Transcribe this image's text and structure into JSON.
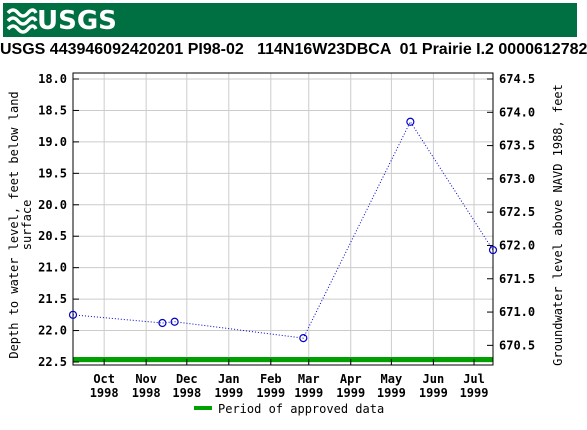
{
  "header": {
    "logo_text": "USGS",
    "logo_icon": "usgs-wave-icon",
    "brand_color": "#006f41"
  },
  "chart_data": {
    "type": "line",
    "title": "USGS 443946092420201 PI98-02   114N16W23DBCA  01 Prairie I.2 0000612782",
    "ylabel_left_line1": "Depth to water level, feet below land",
    "ylabel_left_line2": "surface",
    "ylabel_right": "Groundwater level above NAVD 1988, feet",
    "x_ticks": [
      {
        "month": "Oct",
        "year": "1998",
        "date": "1998-10-01"
      },
      {
        "month": "Nov",
        "year": "1998",
        "date": "1998-11-01"
      },
      {
        "month": "Dec",
        "year": "1998",
        "date": "1998-12-01"
      },
      {
        "month": "Jan",
        "year": "1999",
        "date": "1999-01-01"
      },
      {
        "month": "Feb",
        "year": "1999",
        "date": "1999-02-01"
      },
      {
        "month": "Mar",
        "year": "1999",
        "date": "1999-03-01"
      },
      {
        "month": "Apr",
        "year": "1999",
        "date": "1999-04-01"
      },
      {
        "month": "May",
        "year": "1999",
        "date": "1999-05-01"
      },
      {
        "month": "Jun",
        "year": "1999",
        "date": "1999-06-01"
      },
      {
        "month": "Jul",
        "year": "1999",
        "date": "1999-07-01"
      }
    ],
    "x_range": [
      "1998-09-08",
      "1999-07-15"
    ],
    "y_left_range": [
      18.0,
      22.5
    ],
    "y_left_inverted": true,
    "y_left_ticks": [
      "18.0",
      "18.5",
      "19.0",
      "19.5",
      "20.0",
      "20.5",
      "21.0",
      "21.5",
      "22.0",
      "22.5"
    ],
    "y_right_ticks": [
      "674.5",
      "674.0",
      "673.5",
      "673.0",
      "672.5",
      "672.0",
      "671.5",
      "671.0",
      "670.5"
    ],
    "y_right_values": [
      674.5,
      674.0,
      673.5,
      673.0,
      672.5,
      672.0,
      671.5,
      671.0,
      670.5
    ],
    "series": [
      {
        "color": "#0000cc",
        "line_style": "dotted",
        "marker": "open-circle",
        "points": [
          {
            "x": "1998-09-08",
            "y": 21.75
          },
          {
            "x": "1998-11-13",
            "y": 21.88
          },
          {
            "x": "1998-11-22",
            "y": 21.86
          },
          {
            "x": "1999-02-25",
            "y": 22.12
          },
          {
            "x": "1999-05-15",
            "y": 18.68
          },
          {
            "x": "1999-07-15",
            "y": 20.72
          }
        ]
      }
    ],
    "approved_color": "#00a000",
    "legend_label": "Period of approved data",
    "legend_position": "bottom",
    "grid": true
  }
}
